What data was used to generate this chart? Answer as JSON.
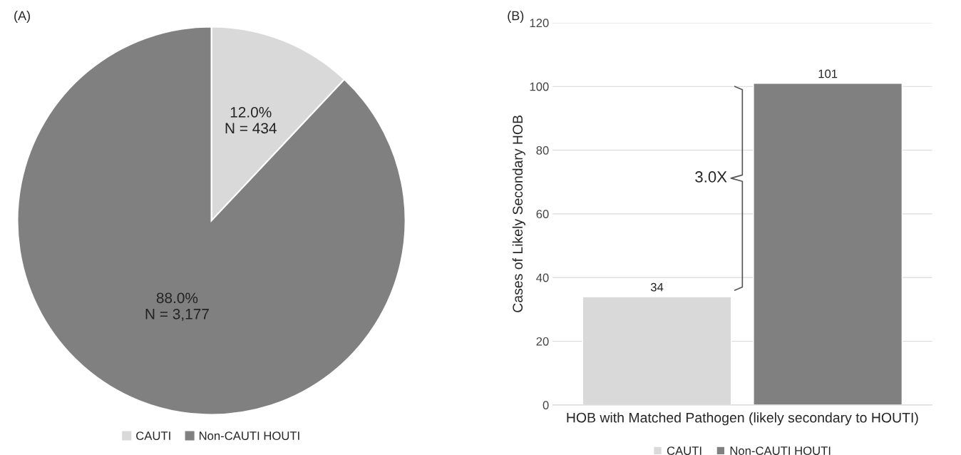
{
  "chart_data": [
    {
      "type": "pie",
      "title": "(A)",
      "categories": [
        "CAUTI",
        "Non-CAUTI HOUTI"
      ],
      "values": [
        434,
        3177
      ],
      "colors": [
        "#d9d9d9",
        "#808080"
      ],
      "value_labels": [
        "12.0%\nN = 434",
        "88.0%\nN = 3,177"
      ],
      "legend": "bottom"
    },
    {
      "type": "bar",
      "title": "(B)",
      "categories": [
        null
      ],
      "xlabel": "HOB with Matched Pathogen (likely secondary to HOUTI)",
      "ylabel": "Cases of Likely Secondary HOB",
      "series": [
        {
          "name": "CAUTI",
          "color": "#d9d9d9",
          "values": [
            34
          ]
        },
        {
          "name": "Non-CAUTI HOUTI",
          "color": "#808080",
          "values": [
            101
          ]
        }
      ],
      "ylim": [
        0,
        120
      ],
      "yticks": [
        0,
        20,
        40,
        60,
        80,
        100,
        120
      ],
      "grid": "y",
      "data_labels": true,
      "legend": "bottom",
      "annotations": [
        "3.0X"
      ]
    }
  ]
}
